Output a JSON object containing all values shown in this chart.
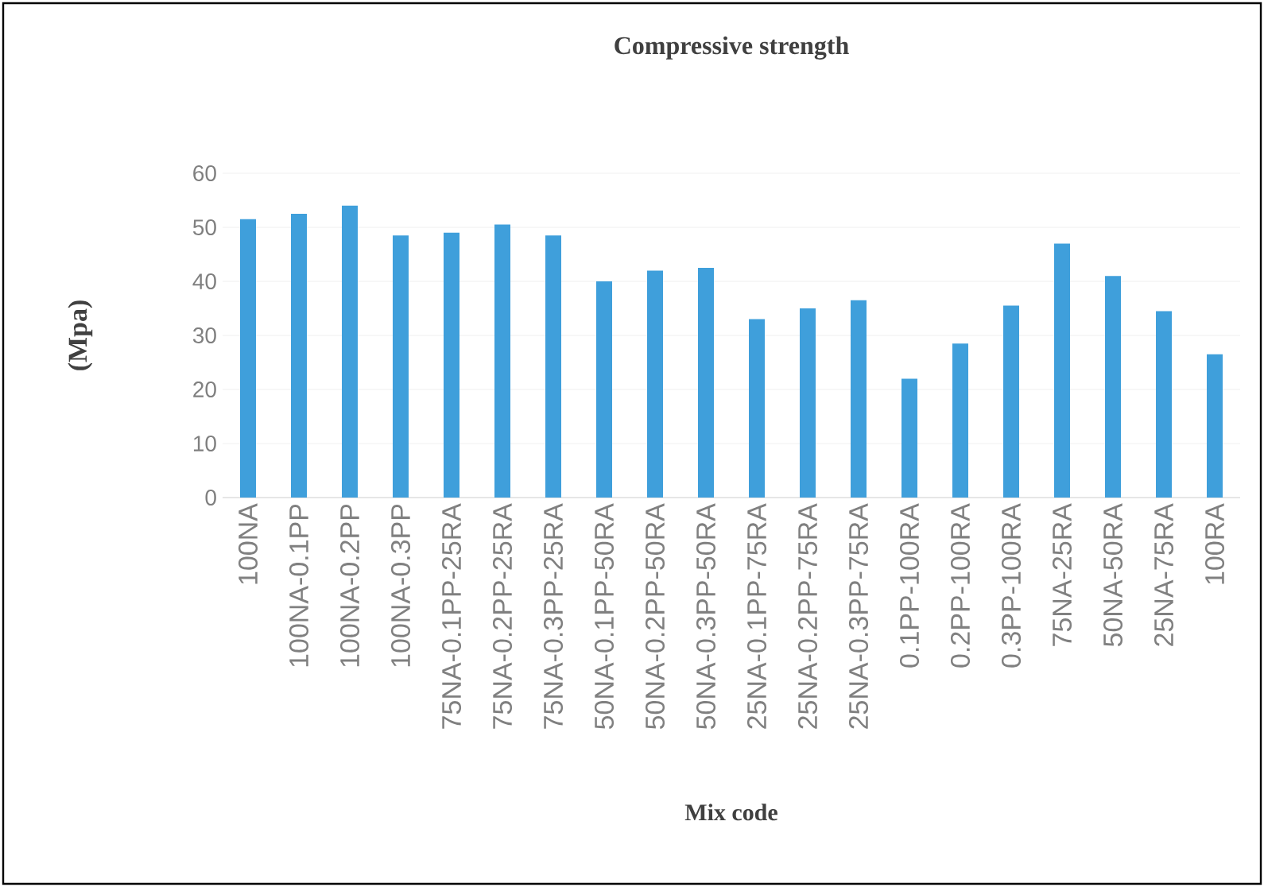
{
  "chart_data": {
    "type": "bar",
    "title": "Compressive strength",
    "xlabel": "Mix code",
    "ylabel": "(Mpa)",
    "categories": [
      "100NA",
      "100NA-0.1PP",
      "100NA-0.2PP",
      "100NA-0.3PP",
      "75NA-0.1PP-25RA",
      "75NA-0.2PP-25RA",
      "75NA-0.3PP-25RA",
      "50NA-0.1PP-50RA",
      "50NA-0.2PP-50RA",
      "50NA-0.3PP-50RA",
      "25NA-0.1PP-75RA",
      "25NA-0.2PP-75RA",
      "25NA-0.3PP-75RA",
      "0.1PP-100RA",
      "0.2PP-100RA",
      "0.3PP-100RA",
      "75NA-25RA",
      "50NA-50RA",
      "25NA-75RA",
      "100RA"
    ],
    "values": [
      51.5,
      52.5,
      54,
      48.5,
      49,
      50.5,
      48.5,
      40,
      42,
      42.5,
      33,
      35,
      36.5,
      22,
      28.5,
      35.5,
      47,
      41,
      34.5,
      26.5
    ],
    "color": "#3f9fdb",
    "ylim": [
      0,
      60
    ],
    "yticks": [
      0,
      10,
      20,
      30,
      40,
      50,
      60
    ],
    "grid": "y"
  }
}
